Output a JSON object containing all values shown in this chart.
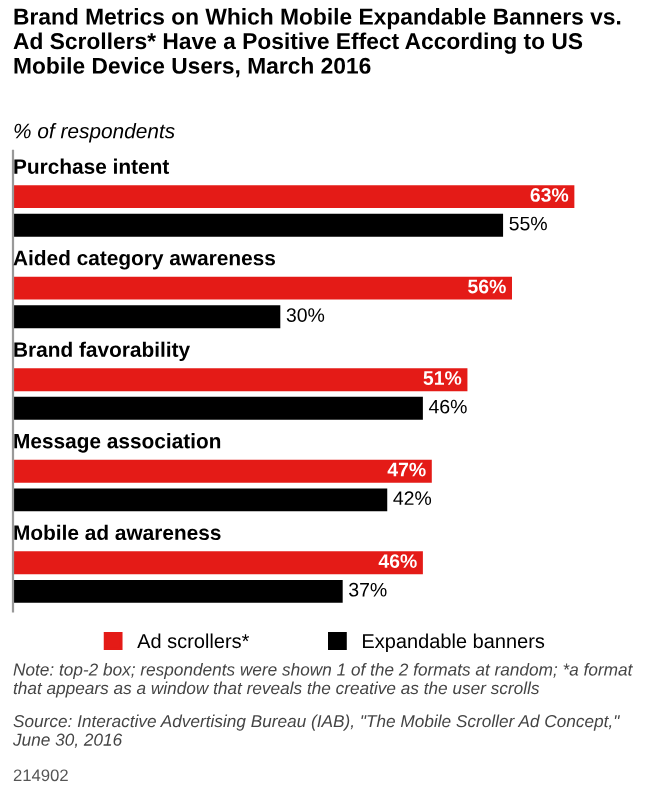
{
  "chart_data": {
    "type": "bar",
    "orientation": "horizontal",
    "title": "Brand Metrics on Which Mobile Expandable Banners vs. Ad Scrollers* Have a Positive Effect According to US Mobile Device Users, March 2016",
    "subtitle": "% of respondents",
    "categories": [
      "Purchase intent",
      "Aided category awareness",
      "Brand favorability",
      "Message association",
      "Mobile ad awareness"
    ],
    "series": [
      {
        "name": "Ad scrollers*",
        "color": "#e41b17",
        "values": [
          63,
          56,
          51,
          47,
          46
        ],
        "value_labels": [
          "63%",
          "56%",
          "51%",
          "47%",
          "46%"
        ]
      },
      {
        "name": "Expandable banners",
        "color": "#000000",
        "values": [
          55,
          30,
          46,
          42,
          37
        ],
        "value_labels": [
          "55%",
          "30%",
          "46%",
          "42%",
          "37%"
        ]
      }
    ],
    "legend": "bottom",
    "annotations": [
      "Note: top-2 box; respondents were shown 1 of the 2 formats at random; *a format that appears as a window that reveals the creative as the user scrolls",
      "Source: Interactive Advertising Bureau (IAB), \"The Mobile Scroller Ad Concept,\" June 30, 2016",
      "214902"
    ]
  }
}
